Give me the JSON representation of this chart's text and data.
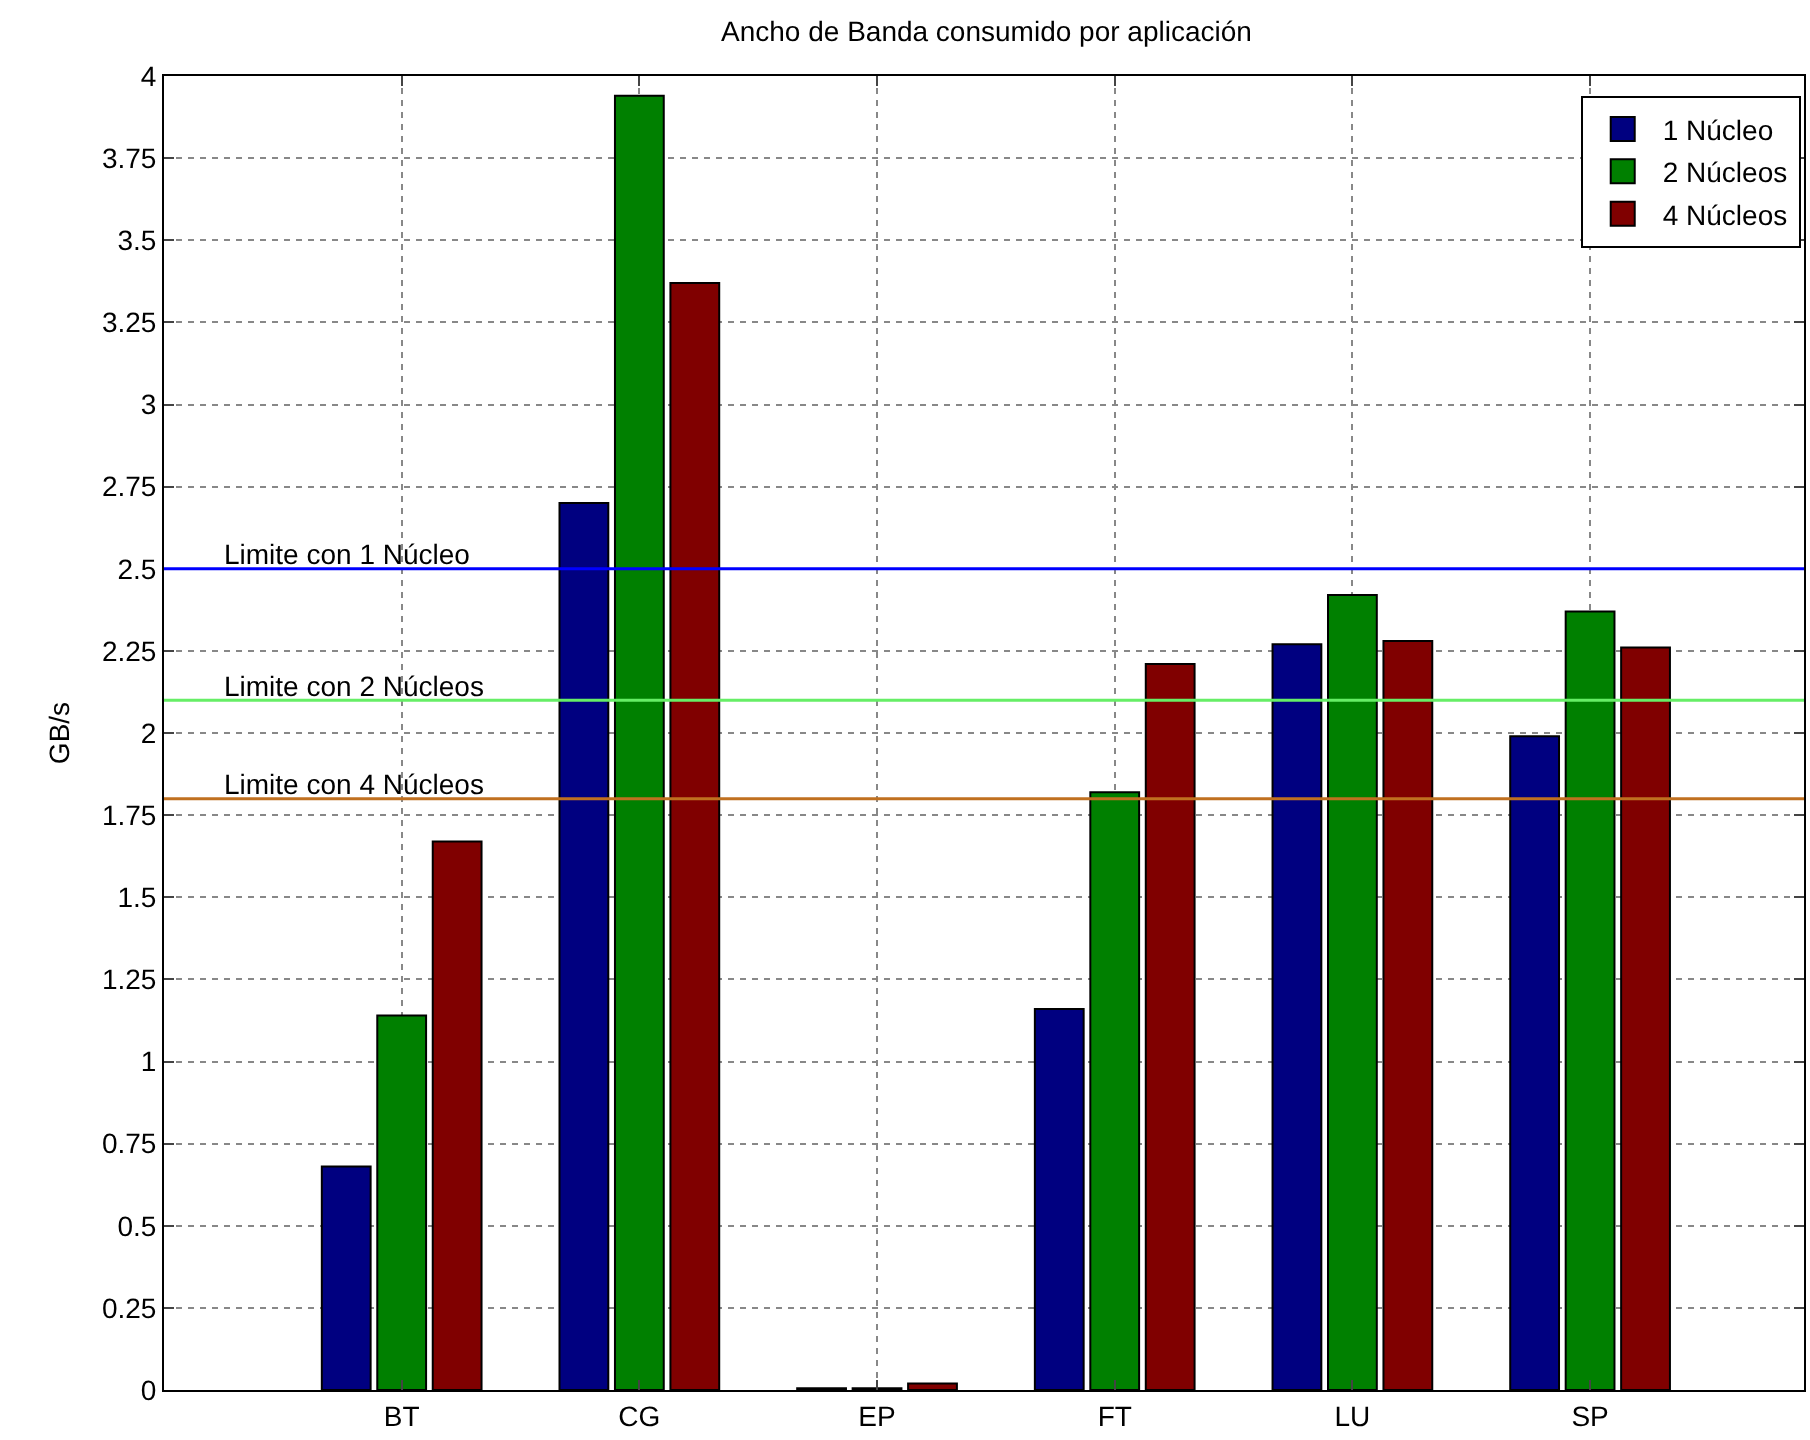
{
  "chart_data": {
    "type": "bar",
    "title": "Ancho de Banda consumido por aplicación",
    "ylabel": "GB/s",
    "categories": [
      "BT",
      "CG",
      "EP",
      "FT",
      "LU",
      "SP"
    ],
    "series": [
      {
        "name": "1 Núcleo",
        "color": "#000080",
        "values": [
          0.68,
          2.7,
          0.005,
          1.16,
          2.27,
          1.99
        ]
      },
      {
        "name": "2 Núcleos",
        "color": "#008000",
        "values": [
          1.14,
          3.94,
          0.005,
          1.82,
          2.42,
          2.37
        ]
      },
      {
        "name": "4 Núcleos",
        "color": "#800000",
        "values": [
          1.67,
          3.37,
          0.02,
          2.21,
          2.28,
          2.26
        ]
      }
    ],
    "ylim": [
      0,
      4
    ],
    "yticks": [
      0,
      0.25,
      0.5,
      0.75,
      1,
      1.25,
      1.5,
      1.75,
      2,
      2.25,
      2.5,
      2.75,
      3,
      3.25,
      3.5,
      3.75,
      4
    ],
    "ref_lines": [
      {
        "axis": "y",
        "value": 2.5,
        "label": "Limite con 1 Núcleo",
        "color": "#0000ff"
      },
      {
        "axis": "y",
        "value": 2.1,
        "label": "Limite con 2 Núcleos",
        "color": "#66ee66"
      },
      {
        "axis": "y",
        "value": 1.8,
        "label": "Limite con 4 Núcleos",
        "color": "#c07020"
      }
    ],
    "grid": true,
    "legend": "top right"
  }
}
